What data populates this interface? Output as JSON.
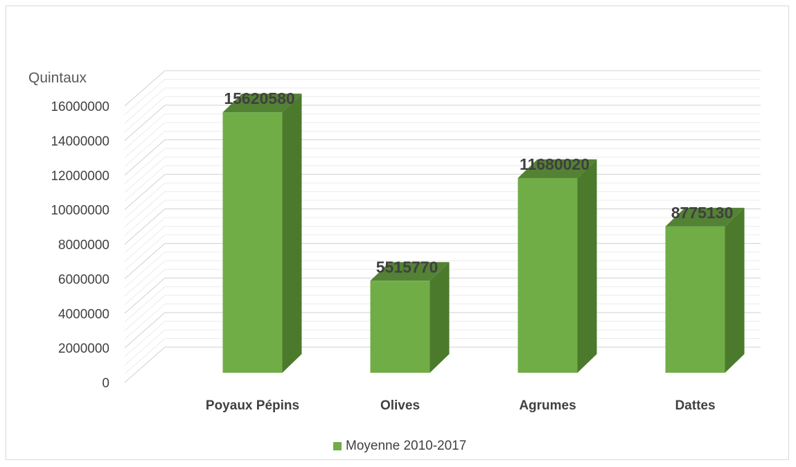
{
  "chart_data": {
    "type": "bar",
    "style": "3d-column",
    "ylabel": "Quintaux",
    "xlabel": "",
    "categories": [
      "Poyaux Pépins",
      "Olives",
      "Agrumes",
      "Dattes"
    ],
    "series": [
      {
        "name": "Moyenne 2010-2017",
        "values": [
          15620580,
          5515770,
          11680020,
          8775130
        ]
      }
    ],
    "ylim": [
      0,
      16000000
    ],
    "yticks": [
      "0",
      "2000000",
      "4000000",
      "6000000",
      "8000000",
      "10000000",
      "12000000",
      "14000000",
      "16000000"
    ],
    "data_labels": [
      "15620580",
      "5515770",
      "11680020",
      "8775130"
    ],
    "grid": true,
    "legend_position": "bottom",
    "colors": {
      "front": "#70ad47",
      "side": "#4b7a2c",
      "top": "#548235",
      "grid": "#d9d9d9",
      "text": "#404040",
      "label": "#404040"
    }
  }
}
